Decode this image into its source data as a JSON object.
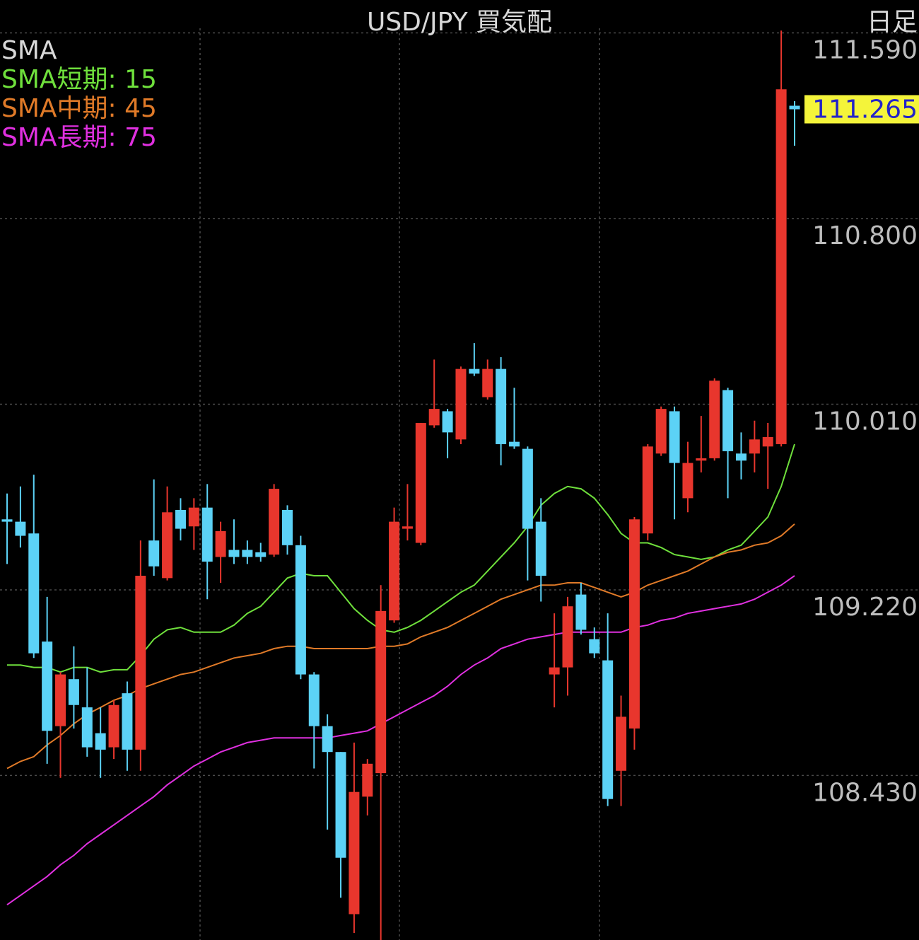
{
  "chart_data": {
    "type": "candlestick",
    "title": "USD/JPY  買気配",
    "period": "日足",
    "legend_title": "SMA",
    "open": [
      109.52,
      109.51,
      109.46,
      109.0,
      108.64,
      108.84,
      108.72,
      108.61,
      108.55,
      108.78,
      108.54,
      109.43,
      109.27,
      109.56,
      109.49,
      109.57,
      109.36,
      109.39,
      109.39,
      109.38,
      109.37,
      109.56,
      109.41,
      108.86,
      108.64,
      108.53,
      107.84,
      108.34,
      108.44,
      109.09,
      109.48,
      109.42,
      109.92,
      109.98,
      109.86,
      110.16,
      110.04,
      110.16,
      109.85,
      109.82,
      109.51,
      108.86,
      108.89,
      109.2,
      109.01,
      108.92,
      108.45,
      108.63,
      109.46,
      109.8,
      109.98,
      109.61,
      109.77,
      109.78,
      110.07,
      109.8,
      109.8,
      109.83,
      109.84,
      111.28
    ],
    "high": [
      109.63,
      109.66,
      109.71,
      109.19,
      108.87,
      108.98,
      108.89,
      108.72,
      108.75,
      108.83,
      109.43,
      109.69,
      109.66,
      109.61,
      109.61,
      109.67,
      109.51,
      109.52,
      109.43,
      109.42,
      109.67,
      109.58,
      109.45,
      108.87,
      108.69,
      108.53,
      108.57,
      108.5,
      109.24,
      109.57,
      109.67,
      109.93,
      110.2,
      109.99,
      110.17,
      110.27,
      110.2,
      110.21,
      110.08,
      109.83,
      109.61,
      109.12,
      109.19,
      109.25,
      109.06,
      109.12,
      108.77,
      109.53,
      109.84,
      110.0,
      110.0,
      109.85,
      109.96,
      110.12,
      110.08,
      109.89,
      109.94,
      109.93,
      111.6,
      111.3
    ],
    "low": [
      109.33,
      109.4,
      108.93,
      108.48,
      108.42,
      108.63,
      108.51,
      108.42,
      108.5,
      108.45,
      108.45,
      109.28,
      109.26,
      109.43,
      109.39,
      109.18,
      109.25,
      109.33,
      109.33,
      109.34,
      109.36,
      109.37,
      108.84,
      108.46,
      108.2,
      107.91,
      107.76,
      108.26,
      107.73,
      109.08,
      109.43,
      109.41,
      109.91,
      109.78,
      109.84,
      110.13,
      110.03,
      109.75,
      109.82,
      109.26,
      109.17,
      108.72,
      108.77,
      109.03,
      108.93,
      108.3,
      108.3,
      108.54,
      109.43,
      109.79,
      109.52,
      109.55,
      109.72,
      109.77,
      109.61,
      109.69,
      109.72,
      109.65,
      109.83,
      111.11
    ],
    "close": [
      109.51,
      109.45,
      108.95,
      108.62,
      108.86,
      108.73,
      108.55,
      108.54,
      108.73,
      108.54,
      109.28,
      109.32,
      109.55,
      109.48,
      109.57,
      109.34,
      109.47,
      109.36,
      109.36,
      109.36,
      109.65,
      109.41,
      108.86,
      108.64,
      108.53,
      108.08,
      108.36,
      108.48,
      109.13,
      109.51,
      109.49,
      109.93,
      109.99,
      109.89,
      110.16,
      110.14,
      110.16,
      109.84,
      109.83,
      109.48,
      109.28,
      108.89,
      109.15,
      109.05,
      108.95,
      108.33,
      108.68,
      109.52,
      109.83,
      109.99,
      109.76,
      109.76,
      109.78,
      110.11,
      109.81,
      109.77,
      109.86,
      109.87,
      111.35,
      111.265
    ],
    "up_color": "#e8362d",
    "down_color": "#5cd2f6",
    "last_price_color": "#f4f43a",
    "series": [
      {
        "name": "SMA短期: 15",
        "color": "#6fe03c",
        "values": [
          108.9,
          108.9,
          108.89,
          108.89,
          108.87,
          108.89,
          108.89,
          108.87,
          108.88,
          108.88,
          108.94,
          109.01,
          109.05,
          109.06,
          109.04,
          109.04,
          109.04,
          109.07,
          109.12,
          109.15,
          109.21,
          109.27,
          109.29,
          109.28,
          109.28,
          109.21,
          109.14,
          109.09,
          109.05,
          109.04,
          109.06,
          109.09,
          109.13,
          109.17,
          109.21,
          109.24,
          109.3,
          109.36,
          109.42,
          109.49,
          109.58,
          109.63,
          109.66,
          109.65,
          109.61,
          109.54,
          109.46,
          109.42,
          109.42,
          109.4,
          109.37,
          109.36,
          109.35,
          109.36,
          109.39,
          109.41,
          109.47,
          109.53,
          109.66,
          109.84
        ]
      },
      {
        "name": "SMA中期: 45",
        "color": "#e07a28",
        "values": [
          108.46,
          108.49,
          108.51,
          108.56,
          108.6,
          108.65,
          108.69,
          108.72,
          108.75,
          108.77,
          108.8,
          108.82,
          108.84,
          108.86,
          108.87,
          108.89,
          108.91,
          108.93,
          108.94,
          108.95,
          108.97,
          108.98,
          108.98,
          108.97,
          108.97,
          108.97,
          108.97,
          108.97,
          108.98,
          108.98,
          108.99,
          109.02,
          109.04,
          109.06,
          109.09,
          109.12,
          109.15,
          109.18,
          109.2,
          109.22,
          109.24,
          109.24,
          109.25,
          109.25,
          109.23,
          109.21,
          109.19,
          109.21,
          109.24,
          109.26,
          109.28,
          109.3,
          109.33,
          109.36,
          109.38,
          109.39,
          109.41,
          109.42,
          109.45,
          109.5
        ]
      },
      {
        "name": "SMA長期: 75",
        "color": "#e030e0",
        "values": [
          107.88,
          107.92,
          107.96,
          108.0,
          108.05,
          108.09,
          108.14,
          108.18,
          108.22,
          108.26,
          108.3,
          108.34,
          108.39,
          108.43,
          108.47,
          108.5,
          108.53,
          108.55,
          108.57,
          108.58,
          108.59,
          108.59,
          108.59,
          108.59,
          108.59,
          108.6,
          108.61,
          108.62,
          108.65,
          108.68,
          108.71,
          108.74,
          108.77,
          108.81,
          108.86,
          108.9,
          108.93,
          108.97,
          108.99,
          109.01,
          109.02,
          109.03,
          109.04,
          109.04,
          109.04,
          109.04,
          109.04,
          109.06,
          109.07,
          109.09,
          109.1,
          109.12,
          109.13,
          109.14,
          109.15,
          109.16,
          109.18,
          109.21,
          109.24,
          109.28
        ]
      }
    ],
    "ylim": [
      107.73,
      111.73
    ],
    "yticks": [
      {
        "value": 111.59,
        "label": "111.590"
      },
      {
        "value": 110.8,
        "label": "110.800"
      },
      {
        "value": 110.01,
        "label": "110.010"
      },
      {
        "value": 109.22,
        "label": "109.220"
      },
      {
        "value": 108.43,
        "label": "108.430"
      }
    ],
    "grid": true
  }
}
